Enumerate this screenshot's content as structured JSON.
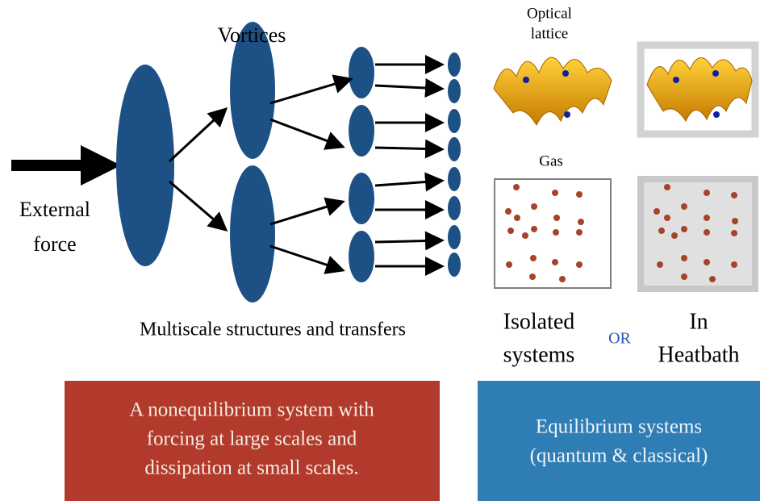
{
  "labels": {
    "vortices": "Vortices",
    "external_force": [
      "External",
      "force"
    ],
    "optical_lattice": [
      "Optical",
      "lattice"
    ],
    "gas": "Gas",
    "multiscale": "Multiscale structures and transfers",
    "isolated": [
      "Isolated",
      "systems"
    ],
    "or": "OR",
    "heatbath": [
      "In",
      "Heatbath"
    ]
  },
  "boxes": {
    "nonequilibrium": [
      "A nonequilibrium system with",
      "forcing at large scales and",
      "dissipation at small scales."
    ],
    "equilibrium": [
      "Equilibrium systems",
      "(quantum & classical)"
    ]
  }
}
